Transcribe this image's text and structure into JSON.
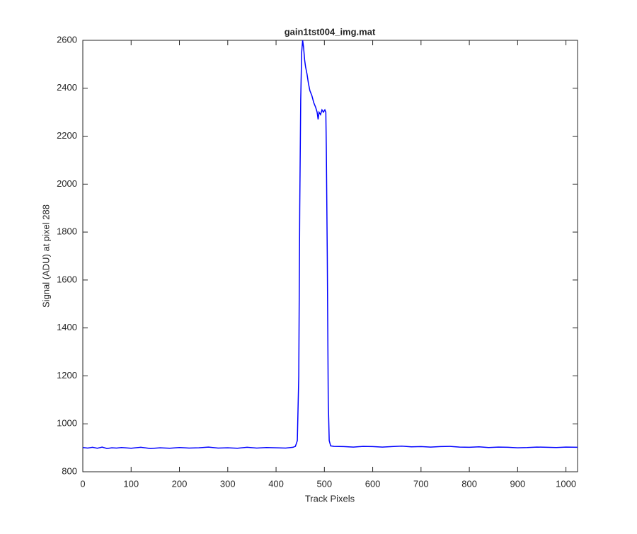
{
  "chart_data": {
    "type": "line",
    "title": "gain1tst004_img.mat",
    "x_label": "Track Pixels",
    "y_label": "Signal (ADU) at pixel 288",
    "x": [
      0,
      10,
      20,
      30,
      40,
      50,
      60,
      70,
      80,
      100,
      120,
      140,
      160,
      180,
      200,
      220,
      240,
      260,
      280,
      300,
      320,
      340,
      360,
      380,
      400,
      420,
      435,
      440,
      444,
      447,
      449,
      451,
      453,
      455,
      457,
      459,
      461,
      464,
      467,
      470,
      474,
      478,
      482,
      485,
      487,
      489,
      492,
      495,
      498,
      501,
      503,
      504,
      506,
      508,
      510,
      513,
      520,
      540,
      560,
      580,
      600,
      620,
      640,
      660,
      680,
      700,
      720,
      740,
      760,
      780,
      800,
      820,
      840,
      860,
      880,
      900,
      920,
      940,
      960,
      980,
      1000,
      1024
    ],
    "series": [
      {
        "color": "#0000ff",
        "values": [
          901,
          899,
          902,
          898,
          903,
          897,
          900,
          899,
          901,
          898,
          902,
          897,
          900,
          898,
          901,
          899,
          900,
          903,
          899,
          900,
          898,
          902,
          899,
          901,
          900,
          899,
          902,
          906,
          930,
          1200,
          1900,
          2350,
          2550,
          2600,
          2570,
          2520,
          2490,
          2460,
          2420,
          2390,
          2370,
          2340,
          2320,
          2300,
          2270,
          2300,
          2290,
          2310,
          2300,
          2310,
          2300,
          2150,
          1700,
          1100,
          930,
          908,
          906,
          905,
          903,
          906,
          905,
          903,
          905,
          907,
          904,
          905,
          903,
          905,
          906,
          903,
          902,
          904,
          901,
          903,
          902,
          900,
          901,
          903,
          902,
          901,
          903,
          902
        ]
      }
    ],
    "xlim": [
      0,
      1024
    ],
    "ylim": [
      800,
      2600
    ],
    "xticks": [
      0,
      100,
      200,
      300,
      400,
      500,
      600,
      700,
      800,
      900,
      1000
    ],
    "yticks": [
      800,
      1000,
      1200,
      1400,
      1600,
      1800,
      2000,
      2200,
      2400,
      2600
    ]
  }
}
